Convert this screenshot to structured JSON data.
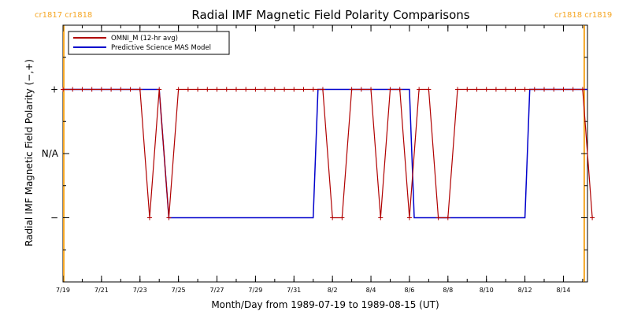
{
  "chart_data": {
    "type": "line",
    "title": "Radial IMF Magnetic Field Polarity Comparisons",
    "xlabel": "Month/Day from 1989-07-19 to 1989-08-15 (UT)",
    "ylabel": "Radial IMF Magnetic Field Polarity (−,+)",
    "x_ticks": [
      "7/19",
      "7/21",
      "7/23",
      "7/25",
      "7/27",
      "7/29",
      "7/31",
      "8/2",
      "8/4",
      "8/6",
      "8/8",
      "8/10",
      "8/12",
      "8/14"
    ],
    "y_ticks": [
      "+",
      "N/A",
      "−"
    ],
    "ylim": [
      -2,
      2
    ],
    "xlim": [
      "1989-07-19",
      "1989-08-15T06:00"
    ],
    "carrington_labels_left": "cr1817 cr1818",
    "carrington_labels_right": "cr1818 cr1819",
    "carrington_markers": [
      "1989-07-19",
      "1989-08-15"
    ],
    "legend": {
      "placement": "top-left",
      "items": [
        "OMNI_M (12-hr avg)",
        "Predictive Science MAS Model"
      ]
    },
    "colors": {
      "omni": "#b00000",
      "model": "#0000cc",
      "carrington": "#f5a623"
    },
    "series": [
      {
        "name": "OMNI_M (12-hr avg)",
        "x": [
          "1989-07-19",
          "1989-07-19T12:00",
          "1989-07-20",
          "1989-07-20T12:00",
          "1989-07-21",
          "1989-07-21T12:00",
          "1989-07-22",
          "1989-07-22T12:00",
          "1989-07-23",
          "1989-07-23T12:00",
          "1989-07-24",
          "1989-07-24T12:00",
          "1989-07-25",
          "1989-07-25T12:00",
          "1989-07-26",
          "1989-07-26T12:00",
          "1989-07-27",
          "1989-07-27T12:00",
          "1989-07-28",
          "1989-07-28T12:00",
          "1989-07-29",
          "1989-07-29T12:00",
          "1989-07-30",
          "1989-07-30T12:00",
          "1989-07-31",
          "1989-07-31T12:00",
          "1989-08-01",
          "1989-08-01T12:00",
          "1989-08-02",
          "1989-08-02T12:00",
          "1989-08-03",
          "1989-08-03T12:00",
          "1989-08-04",
          "1989-08-04T12:00",
          "1989-08-05",
          "1989-08-05T12:00",
          "1989-08-06",
          "1989-08-06T12:00",
          "1989-08-07",
          "1989-08-07T12:00",
          "1989-08-08",
          "1989-08-08T12:00",
          "1989-08-09",
          "1989-08-09T12:00",
          "1989-08-10",
          "1989-08-10T12:00",
          "1989-08-11",
          "1989-08-11T12:00",
          "1989-08-12",
          "1989-08-12T12:00",
          "1989-08-13",
          "1989-08-13T12:00",
          "1989-08-14",
          "1989-08-14T12:00",
          "1989-08-15",
          "1989-08-15T12:00"
        ],
        "values": [
          1,
          1,
          1,
          1,
          1,
          1,
          1,
          1,
          1,
          -1,
          1,
          -1,
          1,
          1,
          1,
          1,
          1,
          1,
          1,
          1,
          1,
          1,
          1,
          1,
          1,
          1,
          1,
          1,
          -1,
          -1,
          1,
          1,
          1,
          -1,
          1,
          1,
          -1,
          1,
          1,
          -1,
          -1,
          1,
          1,
          1,
          1,
          1,
          1,
          1,
          1,
          1,
          1,
          1,
          1,
          1,
          1,
          -1
        ]
      },
      {
        "name": "Predictive Science MAS Model",
        "x": [
          "1989-07-19",
          "1989-07-24",
          "1989-07-24T12:00",
          "1989-08-01",
          "1989-08-01T06:00",
          "1989-08-06",
          "1989-08-06T06:00",
          "1989-08-12",
          "1989-08-12T06:00",
          "1989-08-15T06:00"
        ],
        "values": [
          1,
          1,
          -1,
          -1,
          1,
          1,
          -1,
          -1,
          1,
          1
        ]
      }
    ]
  }
}
